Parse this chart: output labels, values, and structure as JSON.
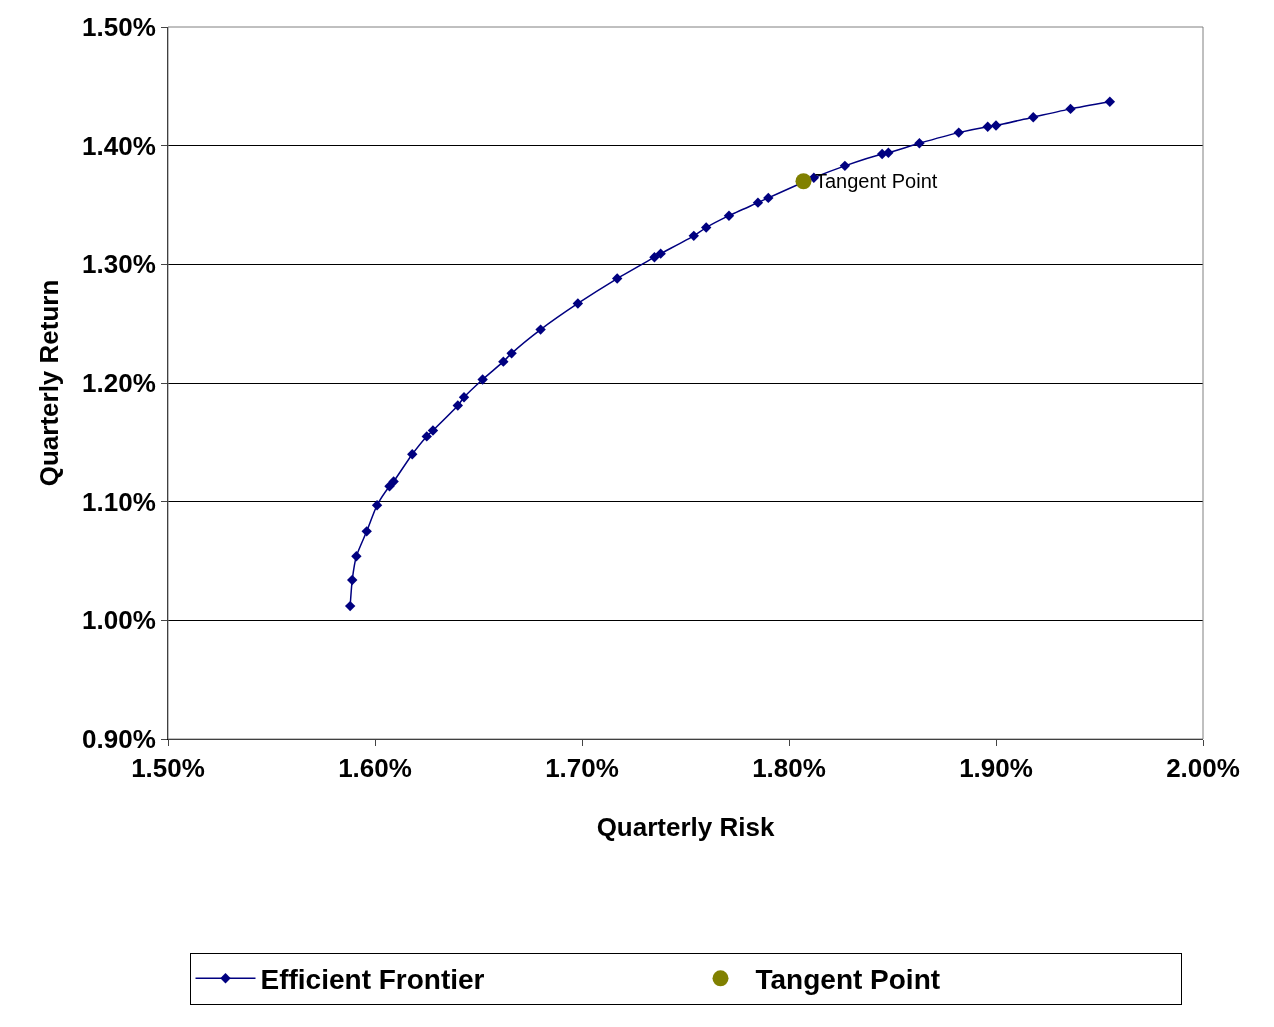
{
  "chart_data": {
    "type": "line",
    "xlabel": "Quarterly Risk",
    "ylabel": "Quarterly Return",
    "xlim": [
      1.5,
      2.0
    ],
    "xticks": [
      {
        "value": 1.5,
        "label": "1.50%"
      },
      {
        "value": 1.6,
        "label": "1.60%"
      },
      {
        "value": 1.7,
        "label": "1.70%"
      },
      {
        "value": 1.8,
        "label": "1.80%"
      },
      {
        "value": 1.9,
        "label": "1.90%"
      },
      {
        "value": 2.0,
        "label": "2.00%"
      }
    ],
    "ylim": [
      0.9,
      1.5
    ],
    "yticks": [
      {
        "value": 0.9,
        "label": "0.90%"
      },
      {
        "value": 1.0,
        "label": "1.00%"
      },
      {
        "value": 1.1,
        "label": "1.10%"
      },
      {
        "value": 1.2,
        "label": "1.20%"
      },
      {
        "value": 1.3,
        "label": "1.30%"
      },
      {
        "value": 1.4,
        "label": "1.40%"
      },
      {
        "value": 1.5,
        "label": "1.50%"
      }
    ],
    "grid": "y",
    "legend": "bottom",
    "line_style": "solid",
    "series": [
      {
        "name": "Efficient Frontier",
        "marker": "diamond",
        "color": "#000080",
        "x": [
          1.588,
          1.589,
          1.591,
          1.596,
          1.601,
          1.607,
          1.609,
          1.618,
          1.625,
          1.628,
          1.64,
          1.643,
          1.652,
          1.662,
          1.666,
          1.68,
          1.698,
          1.717,
          1.735,
          1.738,
          1.754,
          1.76,
          1.771,
          1.785,
          1.79,
          1.812,
          1.827,
          1.845,
          1.848,
          1.863,
          1.882,
          1.896,
          1.9,
          1.918,
          1.936,
          1.955
        ],
        "values": [
          1.012,
          1.034,
          1.054,
          1.075,
          1.097,
          1.113,
          1.117,
          1.14,
          1.155,
          1.16,
          1.181,
          1.188,
          1.203,
          1.218,
          1.225,
          1.245,
          1.267,
          1.288,
          1.306,
          1.309,
          1.324,
          1.331,
          1.341,
          1.352,
          1.356,
          1.373,
          1.383,
          1.393,
          1.394,
          1.402,
          1.411,
          1.416,
          1.417,
          1.424,
          1.431,
          1.437
        ]
      },
      {
        "name": "Tangent Point",
        "type": "scatter",
        "marker": "circle",
        "color": "#808000",
        "x": [
          1.807
        ],
        "values": [
          1.37
        ]
      }
    ],
    "annotations": [
      {
        "text": "Tangent Point",
        "x": 1.807,
        "y": 1.37
      }
    ]
  }
}
